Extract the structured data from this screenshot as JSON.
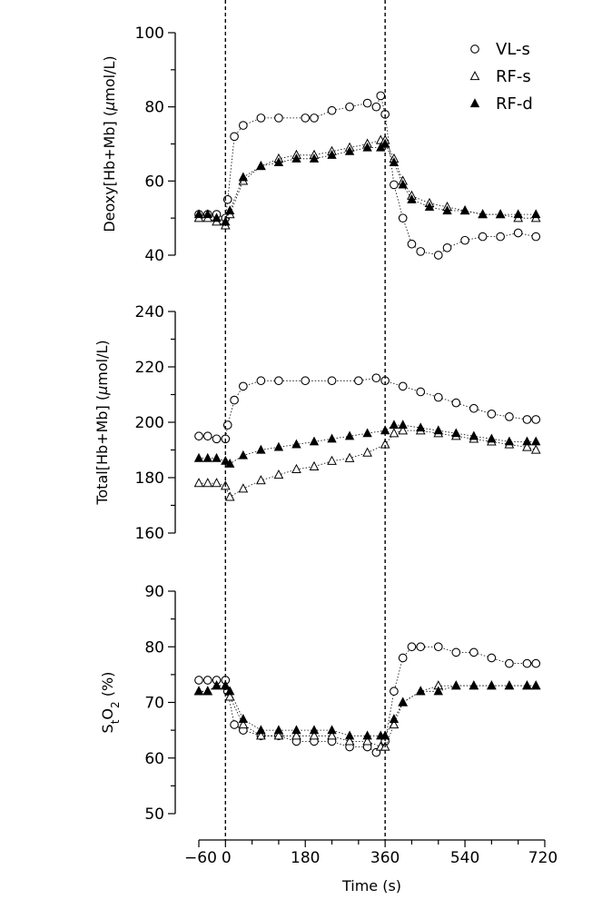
{
  "chart_data": {
    "type": "scatter",
    "x_axis": {
      "label": "Time (s)",
      "ticks": [
        -60,
        0,
        180,
        360,
        540,
        720
      ],
      "tick_labels": [
        "−60",
        "0",
        "180",
        "360",
        "540",
        "720"
      ],
      "range": [
        -60,
        720
      ]
    },
    "vertical_markers": [
      0,
      360
    ],
    "legend": [
      {
        "name": "VL-s",
        "marker": "open-circle"
      },
      {
        "name": "RF-s",
        "marker": "open-triangle"
      },
      {
        "name": "RF-d",
        "marker": "filled-triangle"
      }
    ],
    "panels": [
      {
        "id": "deoxy",
        "ylabel_parts": [
          "Deoxy[Hb+Mb] (",
          "μ",
          "mol/L)"
        ],
        "ylim": [
          40,
          100
        ],
        "ytick_labels": [
          "40",
          "60",
          "80",
          "100"
        ],
        "ytick_values": [
          40,
          60,
          80,
          100
        ],
        "minor_step": 10,
        "series": [
          {
            "name": "VL-s",
            "marker": "open-circle",
            "points": [
              [
                -60,
                51
              ],
              [
                -40,
                51
              ],
              [
                -20,
                51
              ],
              [
                0,
                50
              ],
              [
                5,
                55
              ],
              [
                20,
                72
              ],
              [
                40,
                75
              ],
              [
                80,
                77
              ],
              [
                120,
                77
              ],
              [
                180,
                77
              ],
              [
                200,
                77
              ],
              [
                240,
                79
              ],
              [
                280,
                80
              ],
              [
                320,
                81
              ],
              [
                340,
                80
              ],
              [
                350,
                83
              ],
              [
                360,
                78
              ],
              [
                380,
                59
              ],
              [
                400,
                50
              ],
              [
                420,
                43
              ],
              [
                440,
                41
              ],
              [
                480,
                40
              ],
              [
                500,
                42
              ],
              [
                540,
                44
              ],
              [
                580,
                45
              ],
              [
                620,
                45
              ],
              [
                660,
                46
              ],
              [
                700,
                45
              ]
            ]
          },
          {
            "name": "RF-s",
            "marker": "open-triangle",
            "points": [
              [
                -60,
                50
              ],
              [
                -40,
                50
              ],
              [
                -20,
                49
              ],
              [
                0,
                48
              ],
              [
                10,
                51
              ],
              [
                40,
                60
              ],
              [
                80,
                64
              ],
              [
                120,
                66
              ],
              [
                160,
                67
              ],
              [
                200,
                67
              ],
              [
                240,
                68
              ],
              [
                280,
                69
              ],
              [
                320,
                70
              ],
              [
                350,
                71
              ],
              [
                360,
                71
              ],
              [
                380,
                66
              ],
              [
                400,
                60
              ],
              [
                420,
                56
              ],
              [
                460,
                54
              ],
              [
                500,
                53
              ],
              [
                540,
                52
              ],
              [
                580,
                51
              ],
              [
                620,
                51
              ],
              [
                660,
                50
              ],
              [
                700,
                50
              ]
            ]
          },
          {
            "name": "RF-d",
            "marker": "filled-triangle",
            "points": [
              [
                -60,
                51
              ],
              [
                -40,
                51
              ],
              [
                -20,
                50
              ],
              [
                0,
                49
              ],
              [
                10,
                52
              ],
              [
                40,
                61
              ],
              [
                80,
                64
              ],
              [
                120,
                65
              ],
              [
                160,
                66
              ],
              [
                200,
                66
              ],
              [
                240,
                67
              ],
              [
                280,
                68
              ],
              [
                320,
                69
              ],
              [
                350,
                69
              ],
              [
                360,
                70
              ],
              [
                380,
                65
              ],
              [
                400,
                59
              ],
              [
                420,
                55
              ],
              [
                460,
                53
              ],
              [
                500,
                52
              ],
              [
                540,
                52
              ],
              [
                580,
                51
              ],
              [
                620,
                51
              ],
              [
                660,
                51
              ],
              [
                700,
                51
              ]
            ]
          }
        ]
      },
      {
        "id": "total",
        "ylabel_parts": [
          "Total[Hb+Mb] (",
          "μ",
          "mol/L)"
        ],
        "ylim": [
          160,
          240
        ],
        "ytick_labels": [
          "160",
          "180",
          "200",
          "220",
          "240"
        ],
        "ytick_values": [
          160,
          180,
          200,
          220,
          240
        ],
        "minor_step": 10,
        "series": [
          {
            "name": "VL-s",
            "marker": "open-circle",
            "points": [
              [
                -60,
                195
              ],
              [
                -40,
                195
              ],
              [
                -20,
                194
              ],
              [
                0,
                194
              ],
              [
                5,
                199
              ],
              [
                20,
                208
              ],
              [
                40,
                213
              ],
              [
                80,
                215
              ],
              [
                120,
                215
              ],
              [
                180,
                215
              ],
              [
                240,
                215
              ],
              [
                300,
                215
              ],
              [
                340,
                216
              ],
              [
                360,
                215
              ],
              [
                400,
                213
              ],
              [
                440,
                211
              ],
              [
                480,
                209
              ],
              [
                520,
                207
              ],
              [
                560,
                205
              ],
              [
                600,
                203
              ],
              [
                640,
                202
              ],
              [
                680,
                201
              ],
              [
                700,
                201
              ]
            ]
          },
          {
            "name": "RF-s",
            "marker": "open-triangle",
            "points": [
              [
                -60,
                178
              ],
              [
                -40,
                178
              ],
              [
                -20,
                178
              ],
              [
                0,
                177
              ],
              [
                10,
                173
              ],
              [
                40,
                176
              ],
              [
                80,
                179
              ],
              [
                120,
                181
              ],
              [
                160,
                183
              ],
              [
                200,
                184
              ],
              [
                240,
                186
              ],
              [
                280,
                187
              ],
              [
                320,
                189
              ],
              [
                360,
                192
              ],
              [
                380,
                196
              ],
              [
                400,
                197
              ],
              [
                440,
                197
              ],
              [
                480,
                196
              ],
              [
                520,
                195
              ],
              [
                560,
                194
              ],
              [
                600,
                193
              ],
              [
                640,
                192
              ],
              [
                680,
                191
              ],
              [
                700,
                190
              ]
            ]
          },
          {
            "name": "RF-d",
            "marker": "filled-triangle",
            "points": [
              [
                -60,
                187
              ],
              [
                -40,
                187
              ],
              [
                -20,
                187
              ],
              [
                0,
                186
              ],
              [
                10,
                185
              ],
              [
                40,
                188
              ],
              [
                80,
                190
              ],
              [
                120,
                191
              ],
              [
                160,
                192
              ],
              [
                200,
                193
              ],
              [
                240,
                194
              ],
              [
                280,
                195
              ],
              [
                320,
                196
              ],
              [
                360,
                197
              ],
              [
                380,
                199
              ],
              [
                400,
                199
              ],
              [
                440,
                198
              ],
              [
                480,
                197
              ],
              [
                520,
                196
              ],
              [
                560,
                195
              ],
              [
                600,
                194
              ],
              [
                640,
                193
              ],
              [
                680,
                193
              ],
              [
                700,
                193
              ]
            ]
          }
        ]
      },
      {
        "id": "sto2",
        "ylabel_parts": [
          "S",
          "t",
          "O",
          "2",
          " (%)"
        ],
        "ylim": [
          50,
          90
        ],
        "ytick_labels": [
          "50",
          "60",
          "70",
          "80",
          "90"
        ],
        "ytick_values": [
          50,
          60,
          70,
          80,
          90
        ],
        "minor_step": 5,
        "series": [
          {
            "name": "VL-s",
            "marker": "open-circle",
            "points": [
              [
                -60,
                74
              ],
              [
                -40,
                74
              ],
              [
                -20,
                74
              ],
              [
                0,
                74
              ],
              [
                5,
                72
              ],
              [
                20,
                66
              ],
              [
                40,
                65
              ],
              [
                80,
                64
              ],
              [
                120,
                64
              ],
              [
                160,
                63
              ],
              [
                200,
                63
              ],
              [
                240,
                63
              ],
              [
                280,
                62
              ],
              [
                320,
                62
              ],
              [
                340,
                61
              ],
              [
                360,
                63
              ],
              [
                380,
                72
              ],
              [
                400,
                78
              ],
              [
                420,
                80
              ],
              [
                440,
                80
              ],
              [
                480,
                80
              ],
              [
                520,
                79
              ],
              [
                560,
                79
              ],
              [
                600,
                78
              ],
              [
                640,
                77
              ],
              [
                680,
                77
              ],
              [
                700,
                77
              ]
            ]
          },
          {
            "name": "RF-s",
            "marker": "open-triangle",
            "points": [
              [
                -60,
                72
              ],
              [
                -40,
                72
              ],
              [
                -20,
                73
              ],
              [
                0,
                73
              ],
              [
                10,
                71
              ],
              [
                40,
                66
              ],
              [
                80,
                64
              ],
              [
                120,
                64
              ],
              [
                160,
                64
              ],
              [
                200,
                64
              ],
              [
                240,
                64
              ],
              [
                280,
                63
              ],
              [
                320,
                63
              ],
              [
                350,
                62
              ],
              [
                360,
                62
              ],
              [
                380,
                66
              ],
              [
                400,
                70
              ],
              [
                440,
                72
              ],
              [
                480,
                73
              ],
              [
                520,
                73
              ],
              [
                560,
                73
              ],
              [
                600,
                73
              ],
              [
                640,
                73
              ],
              [
                680,
                73
              ],
              [
                700,
                73
              ]
            ]
          },
          {
            "name": "RF-d",
            "marker": "filled-triangle",
            "points": [
              [
                -60,
                72
              ],
              [
                -40,
                72
              ],
              [
                -20,
                73
              ],
              [
                0,
                73
              ],
              [
                10,
                72
              ],
              [
                40,
                67
              ],
              [
                80,
                65
              ],
              [
                120,
                65
              ],
              [
                160,
                65
              ],
              [
                200,
                65
              ],
              [
                240,
                65
              ],
              [
                280,
                64
              ],
              [
                320,
                64
              ],
              [
                350,
                64
              ],
              [
                360,
                64
              ],
              [
                380,
                67
              ],
              [
                400,
                70
              ],
              [
                440,
                72
              ],
              [
                480,
                72
              ],
              [
                520,
                73
              ],
              [
                560,
                73
              ],
              [
                600,
                73
              ],
              [
                640,
                73
              ],
              [
                680,
                73
              ],
              [
                700,
                73
              ]
            ]
          }
        ]
      }
    ]
  }
}
